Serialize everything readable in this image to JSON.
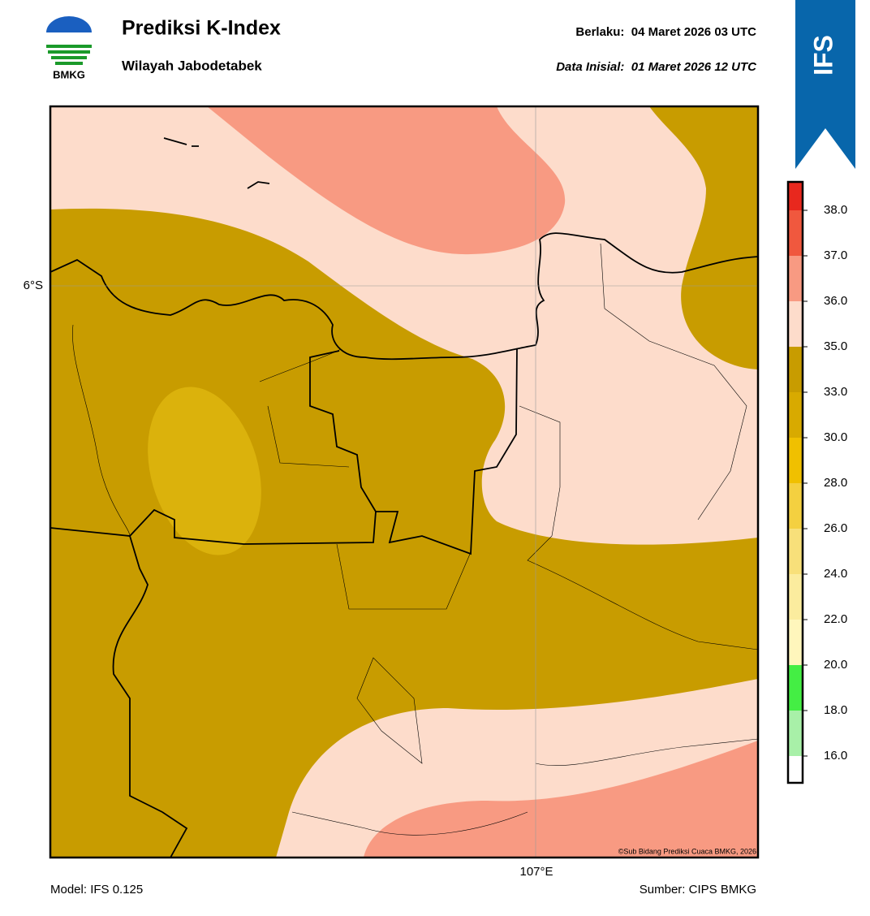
{
  "header": {
    "logo": "BMKG",
    "title": "Prediksi K-Index",
    "subtitle": "Wilayah Jabodetabek",
    "valid": "Berlaku:  04 Maret 2026 03 UTC",
    "initial": "Data Inisial:  01 Maret 2026 12 UTC",
    "badge": "IFS"
  },
  "map": {
    "lat_label": "6°S",
    "lon_label": "107°E",
    "credit": "©Sub Bidang Prediksi Cuaca BMKG, 2026"
  },
  "colorbar": {
    "ticks": [
      "38.0",
      "37.0",
      "36.0",
      "35.0",
      "33.0",
      "30.0",
      "28.0",
      "26.0",
      "24.0",
      "22.0",
      "20.0",
      "18.0",
      "16.0"
    ],
    "colors": [
      "#e8281e",
      "#f0583e",
      "#f89a82",
      "#fddccb",
      "#c89c00",
      "#d8aa00",
      "#f0c000",
      "#f4d040",
      "#f8e07a",
      "#fbec9e",
      "#fff6bc",
      "#44ee44",
      "#a8f0a8",
      "#ffffff"
    ]
  },
  "footer": {
    "model": "Model: IFS 0.125",
    "source": "Sumber: CIPS BMKG"
  }
}
